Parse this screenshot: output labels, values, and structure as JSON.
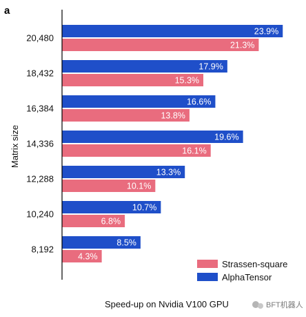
{
  "panel_label": "a",
  "watermark": {
    "text": "BFT机器人"
  },
  "colors": {
    "strassen": "#E96C7E",
    "alphatensor": "#1F4FC9",
    "axis": "#000000",
    "bar_text": "#FFFFFF"
  },
  "chart_data": {
    "type": "bar",
    "orientation": "horizontal",
    "title": "",
    "xlabel": "Speed-up on Nvidia V100 GPU",
    "ylabel": "Matrix size",
    "categories": [
      "20,480",
      "18,432",
      "16,384",
      "14,336",
      "12,288",
      "10,240",
      "8,192"
    ],
    "xlim": [
      0,
      25
    ],
    "grid": false,
    "legend_position": "bottom-right",
    "series": [
      {
        "name": "AlphaTensor",
        "color": "#1F4FC9",
        "values": [
          23.9,
          17.9,
          16.6,
          19.6,
          13.3,
          10.7,
          8.5
        ],
        "labels": [
          "23.9%",
          "17.9%",
          "16.6%",
          "19.6%",
          "13.3%",
          "10.7%",
          "8.5%"
        ]
      },
      {
        "name": "Strassen-square",
        "color": "#E96C7E",
        "values": [
          21.3,
          15.3,
          13.8,
          16.1,
          10.1,
          6.8,
          4.3
        ],
        "labels": [
          "21.3%",
          "15.3%",
          "13.8%",
          "16.1%",
          "10.1%",
          "6.8%",
          "4.3%"
        ]
      }
    ],
    "legend_order": [
      "Strassen-square",
      "AlphaTensor"
    ]
  }
}
